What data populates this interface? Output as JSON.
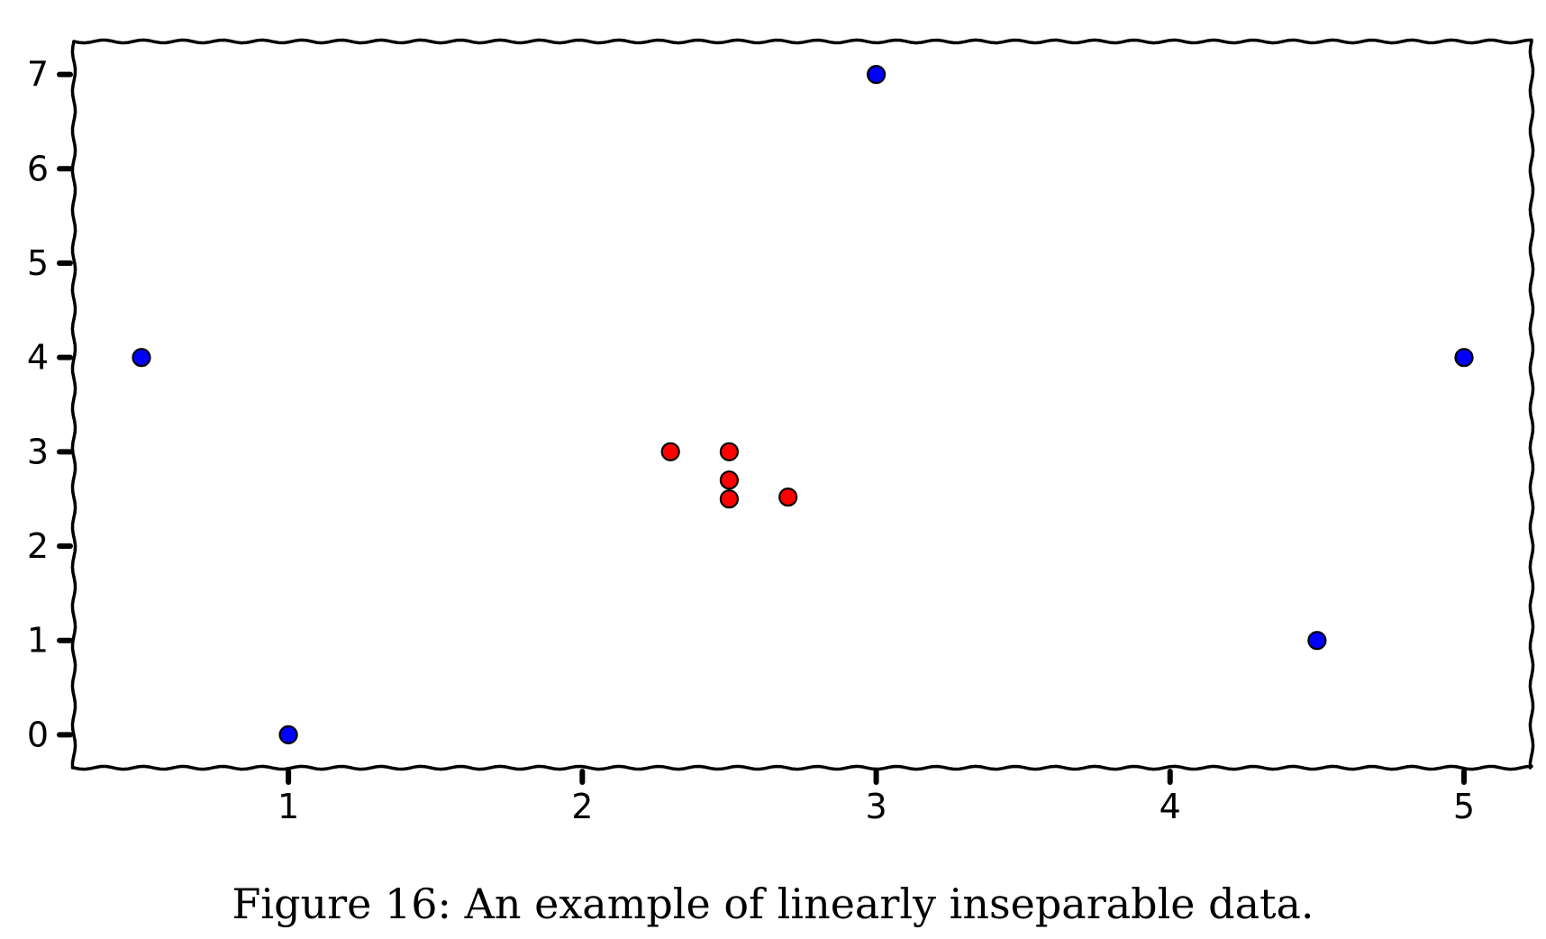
{
  "chart_data": {
    "type": "scatter",
    "title": "",
    "xlabel": "",
    "ylabel": "",
    "xlim": [
      0.27,
      5.23
    ],
    "ylim": [
      -0.35,
      7.35
    ],
    "xticks": [
      1,
      2,
      3,
      4,
      5
    ],
    "yticks": [
      0,
      1,
      2,
      3,
      4,
      5,
      6,
      7
    ],
    "grid": false,
    "style": "xkcd",
    "series": [
      {
        "color": "#0000ff",
        "points": [
          {
            "x": 0.5,
            "y": 4
          },
          {
            "x": 1.0,
            "y": 0
          },
          {
            "x": 3.0,
            "y": 7
          },
          {
            "x": 4.5,
            "y": 1
          },
          {
            "x": 5.0,
            "y": 4
          }
        ]
      },
      {
        "color": "#ff0000",
        "points": [
          {
            "x": 2.3,
            "y": 3.0
          },
          {
            "x": 2.5,
            "y": 3.0
          },
          {
            "x": 2.5,
            "y": 2.7
          },
          {
            "x": 2.5,
            "y": 2.5
          },
          {
            "x": 2.7,
            "y": 2.52
          }
        ]
      }
    ]
  },
  "caption": "Figure 16: An example of linearly inseparable data."
}
